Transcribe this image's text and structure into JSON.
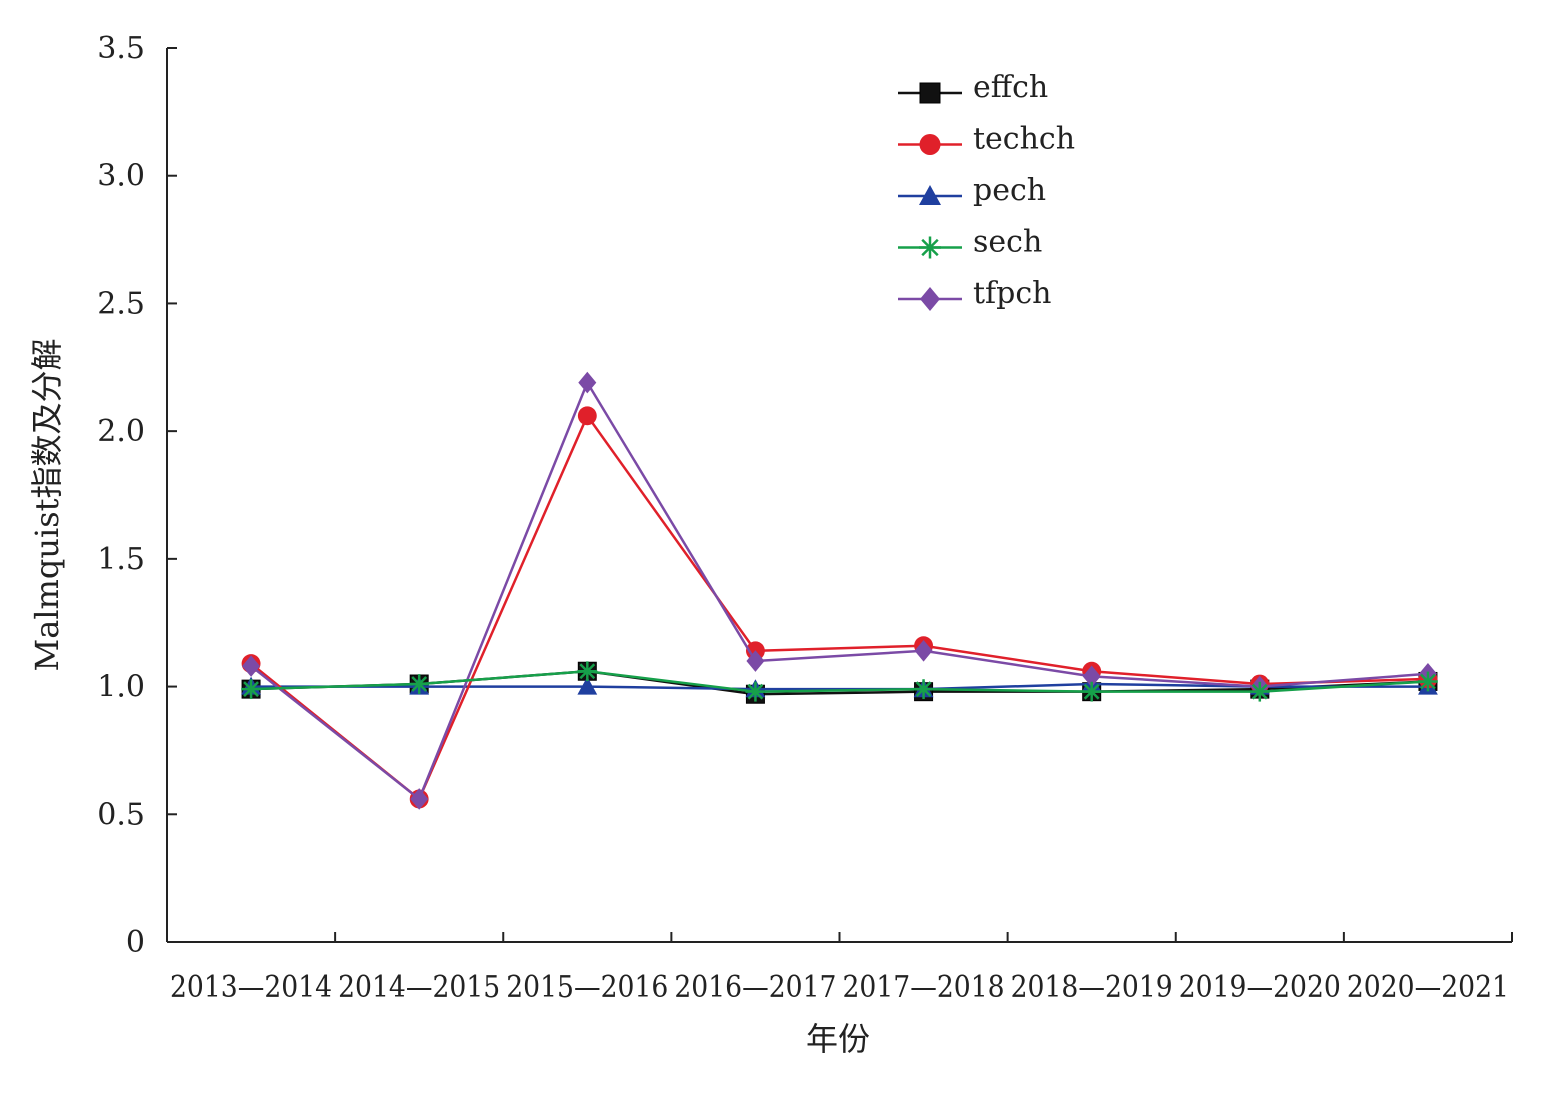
{
  "chart_data": {
    "type": "line",
    "title": "",
    "xlabel": "年份",
    "ylabel": "Malmquist指数及分解",
    "categories": [
      "2013—2014",
      "2014—2015",
      "2015—2016",
      "2016—2017",
      "2017—2018",
      "2018—2019",
      "2019—2020",
      "2020—2021"
    ],
    "y_ticks": [
      "0",
      "0.5",
      "1.0",
      "1.5",
      "2.0",
      "2.5",
      "3.0",
      "3.5"
    ],
    "ylim": [
      0,
      3.5
    ],
    "grid": false,
    "legend_position": "top-right",
    "series": [
      {
        "name": "effch",
        "color": "#111111",
        "marker": "square",
        "values": [
          0.99,
          1.01,
          1.06,
          0.97,
          0.98,
          0.98,
          0.99,
          1.02
        ]
      },
      {
        "name": "techch",
        "color": "#e0202a",
        "marker": "circle",
        "values": [
          1.09,
          0.56,
          2.06,
          1.14,
          1.16,
          1.06,
          1.01,
          1.03
        ]
      },
      {
        "name": "pech",
        "color": "#1f3f9f",
        "marker": "triangle",
        "values": [
          1.0,
          1.0,
          1.0,
          0.99,
          0.99,
          1.01,
          1.0,
          1.0
        ]
      },
      {
        "name": "sech",
        "color": "#16a04a",
        "marker": "star",
        "values": [
          0.99,
          1.01,
          1.06,
          0.98,
          0.99,
          0.98,
          0.98,
          1.02
        ]
      },
      {
        "name": "tfpch",
        "color": "#7b4aa6",
        "marker": "diamond",
        "values": [
          1.08,
          0.56,
          2.19,
          1.1,
          1.14,
          1.04,
          1.0,
          1.05
        ]
      }
    ]
  }
}
